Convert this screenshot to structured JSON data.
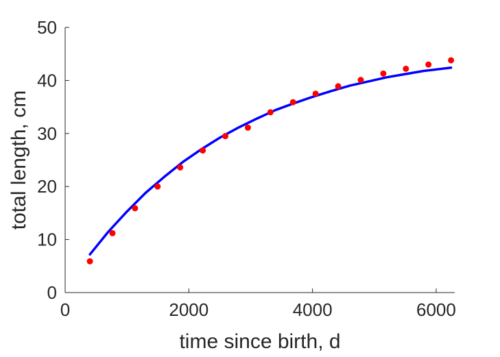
{
  "chart_data": {
    "type": "scatter",
    "title": "",
    "xlabel": "time since birth, d",
    "ylabel": "total length, cm",
    "xlim": [
      0,
      6300
    ],
    "ylim": [
      0,
      50
    ],
    "xticks": [
      0,
      2000,
      4000,
      6000
    ],
    "yticks": [
      0,
      10,
      20,
      30,
      40,
      50
    ],
    "grid": false,
    "legend": "none",
    "series": [
      {
        "kind": "scatter",
        "color": "#ff0000",
        "x": [
          400,
          765,
          1130,
          1495,
          1860,
          2225,
          2590,
          2955,
          3320,
          3685,
          4050,
          4415,
          4780,
          5145,
          5510,
          5875,
          6240
        ],
        "y": [
          5.9,
          11.2,
          15.9,
          20.0,
          23.6,
          26.8,
          29.5,
          31.1,
          34.0,
          35.9,
          37.5,
          38.9,
          40.1,
          41.3,
          42.2,
          43.0,
          43.8
        ]
      },
      {
        "kind": "line",
        "color": "#0000ff",
        "x": [
          400,
          700,
          1000,
          1300,
          1600,
          1900,
          2200,
          2500,
          2800,
          3100,
          3400,
          3700,
          4000,
          4300,
          4600,
          4900,
          5200,
          5500,
          5800,
          6240
        ],
        "y": [
          7.2,
          11.5,
          15.3,
          18.8,
          21.8,
          24.6,
          27.0,
          29.2,
          31.1,
          32.8,
          34.4,
          35.7,
          36.9,
          38.0,
          39.0,
          39.8,
          40.6,
          41.2,
          41.8,
          42.4
        ]
      }
    ]
  }
}
